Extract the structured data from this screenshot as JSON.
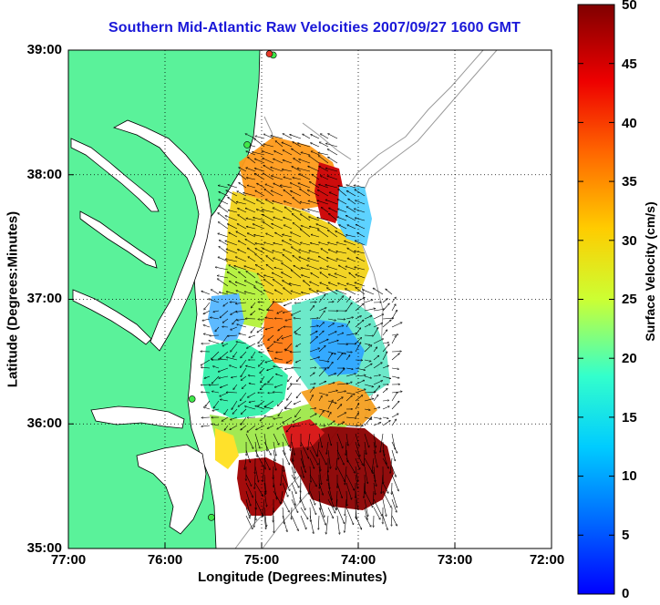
{
  "title": "Southern Mid-Atlantic Raw Velocities 2007/09/27 1600 GMT",
  "colors": {
    "land": "#5af29a",
    "ocean": "#ffffff",
    "coastline": "#000000",
    "bathymetry": "#9a9a9a",
    "title": "#1a18d8",
    "site_marker": "#3fe84b",
    "site_marker_alt": "#e53a2a"
  },
  "map": {
    "x_axis": {
      "label": "Longitude (Degrees:Minutes)",
      "range": [
        -77,
        -72
      ],
      "ticks": [
        {
          "value": -77,
          "label": "77:00"
        },
        {
          "value": -76,
          "label": "76:00"
        },
        {
          "value": -75,
          "label": "75:00"
        },
        {
          "value": -74,
          "label": "74:00"
        },
        {
          "value": -73,
          "label": "73:00"
        },
        {
          "value": -72,
          "label": "72:00"
        }
      ]
    },
    "y_axis": {
      "label": "Latitude (Degrees:Minutes)",
      "range": [
        35,
        39
      ],
      "ticks": [
        {
          "value": 39,
          "label": "39:00"
        },
        {
          "value": 38,
          "label": "38:00"
        },
        {
          "value": 37,
          "label": "37:00"
        },
        {
          "value": 36,
          "label": "36:00"
        },
        {
          "value": 35,
          "label": "35:00"
        }
      ]
    },
    "grid": "dotted"
  },
  "colorbar": {
    "label": "Surface Velocity (cm/s)",
    "range": [
      0,
      50
    ],
    "ticks": [
      "50",
      "45",
      "40",
      "35",
      "30",
      "25",
      "20",
      "15",
      "10",
      "5",
      "0"
    ],
    "colormap": "jet"
  },
  "sites": [
    {
      "lon": -74.88,
      "lat": 38.96,
      "marker": "site_marker"
    },
    {
      "lon": -74.92,
      "lat": 38.97,
      "marker": "site_marker_alt"
    },
    {
      "lon": -75.15,
      "lat": 38.24,
      "marker": "site_marker"
    },
    {
      "lon": -75.72,
      "lat": 36.2,
      "marker": "site_marker"
    },
    {
      "lon": -75.52,
      "lat": 35.25,
      "marker": "site_marker"
    }
  ]
}
